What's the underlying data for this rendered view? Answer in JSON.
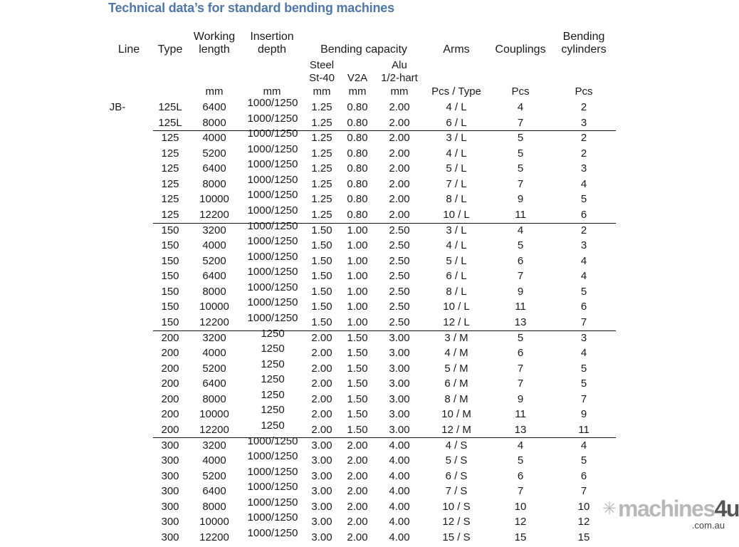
{
  "title": "Technical data’s for standard bending machines",
  "headers": {
    "line": "Line",
    "type": "Type",
    "working_length": [
      "Working",
      "length"
    ],
    "insertion_depth": [
      "Insertion",
      "depth"
    ],
    "bending_capacity": "Bending capacity",
    "arms": "Arms",
    "couplings": "Couplings",
    "bending_cylinders": [
      "Bending",
      "cylinders"
    ],
    "steel": [
      "Steel",
      "St-40"
    ],
    "v2a": "V2A",
    "alu": [
      "Alu",
      "1/2-hart"
    ],
    "units": {
      "working_length": "mm",
      "insertion_depth": "mm",
      "steel": "mm",
      "v2a": "mm",
      "alu": "mm",
      "arms": "Pcs / Type",
      "couplings": "Pcs",
      "bending_cylinders": "Pcs"
    }
  },
  "line_label": "JB-",
  "rows": [
    [
      "125L",
      "6400",
      "1000/1250",
      "1.25",
      "0.80",
      "2.00",
      "4 / L",
      "4",
      "2"
    ],
    [
      "125L",
      "8000",
      "1000/1250",
      "1.25",
      "0.80",
      "2.00",
      "6 / L",
      "7",
      "3"
    ],
    [
      "125",
      "4000",
      "1000/1250",
      "1.25",
      "0.80",
      "2.00",
      "3 / L",
      "5",
      "2"
    ],
    [
      "125",
      "5200",
      "1000/1250",
      "1.25",
      "0.80",
      "2.00",
      "4 / L",
      "5",
      "2"
    ],
    [
      "125",
      "6400",
      "1000/1250",
      "1.25",
      "0.80",
      "2.00",
      "5 / L",
      "5",
      "3"
    ],
    [
      "125",
      "8000",
      "1000/1250",
      "1.25",
      "0.80",
      "2.00",
      "7 / L",
      "7",
      "4"
    ],
    [
      "125",
      "10000",
      "1000/1250",
      "1.25",
      "0.80",
      "2.00",
      "8 / L",
      "9",
      "5"
    ],
    [
      "125",
      "12200",
      "1000/1250",
      "1.25",
      "0.80",
      "2.00",
      "10 / L",
      "11",
      "6"
    ],
    [
      "150",
      "3200",
      "1000/1250",
      "1.50",
      "1.00",
      "2.50",
      "3 / L",
      "4",
      "2"
    ],
    [
      "150",
      "4000",
      "1000/1250",
      "1.50",
      "1.00",
      "2.50",
      "4 / L",
      "5",
      "3"
    ],
    [
      "150",
      "5200",
      "1000/1250",
      "1.50",
      "1.00",
      "2.50",
      "5 / L",
      "6",
      "4"
    ],
    [
      "150",
      "6400",
      "1000/1250",
      "1.50",
      "1.00",
      "2.50",
      "6 / L",
      "7",
      "4"
    ],
    [
      "150",
      "8000",
      "1000/1250",
      "1.50",
      "1.00",
      "2.50",
      "8 / L",
      "9",
      "5"
    ],
    [
      "150",
      "10000",
      "1000/1250",
      "1.50",
      "1.00",
      "2.50",
      "10 / L",
      "11",
      "6"
    ],
    [
      "150",
      "12200",
      "1000/1250",
      "1.50",
      "1.00",
      "2.50",
      "12 / L",
      "13",
      "7"
    ],
    [
      "200",
      "3200",
      "1250",
      "2.00",
      "1.50",
      "3.00",
      "3 / M",
      "5",
      "3"
    ],
    [
      "200",
      "4000",
      "1250",
      "2.00",
      "1.50",
      "3.00",
      "4 / M",
      "6",
      "4"
    ],
    [
      "200",
      "5200",
      "1250",
      "2.00",
      "1.50",
      "3.00",
      "5 / M",
      "7",
      "5"
    ],
    [
      "200",
      "6400",
      "1250",
      "2.00",
      "1.50",
      "3.00",
      "6 / M",
      "7",
      "5"
    ],
    [
      "200",
      "8000",
      "1250",
      "2.00",
      "1.50",
      "3.00",
      "8 / M",
      "9",
      "7"
    ],
    [
      "200",
      "10000",
      "1250",
      "2.00",
      "1.50",
      "3.00",
      "10 / M",
      "11",
      "9"
    ],
    [
      "200",
      "12200",
      "1250",
      "2.00",
      "1.50",
      "3.00",
      "12 / M",
      "13",
      "11"
    ],
    [
      "300",
      "3200",
      "1000/1250",
      "3.00",
      "2.00",
      "4.00",
      "4 / S",
      "4",
      "4"
    ],
    [
      "300",
      "4000",
      "1000/1250",
      "3.00",
      "2.00",
      "4.00",
      "5 / S",
      "5",
      "5"
    ],
    [
      "300",
      "5200",
      "1000/1250",
      "3.00",
      "2.00",
      "4.00",
      "6 / S",
      "6",
      "6"
    ],
    [
      "300",
      "6400",
      "1000/1250",
      "3.00",
      "2.00",
      "4.00",
      "7 / S",
      "7",
      "7"
    ],
    [
      "300",
      "8000",
      "1000/1250",
      "3.00",
      "2.00",
      "4.00",
      "10 / S",
      "10",
      "10"
    ],
    [
      "300",
      "10000",
      "1000/1250",
      "3.00",
      "2.00",
      "4.00",
      "12 / S",
      "12",
      "12"
    ],
    [
      "300",
      "12200",
      "1000/1250",
      "3.00",
      "2.00",
      "4.00",
      "15 / S",
      "15",
      "15"
    ]
  ],
  "watermark": {
    "brand": "machines",
    "brand_accent": "4u",
    "domain": ".com.au"
  }
}
